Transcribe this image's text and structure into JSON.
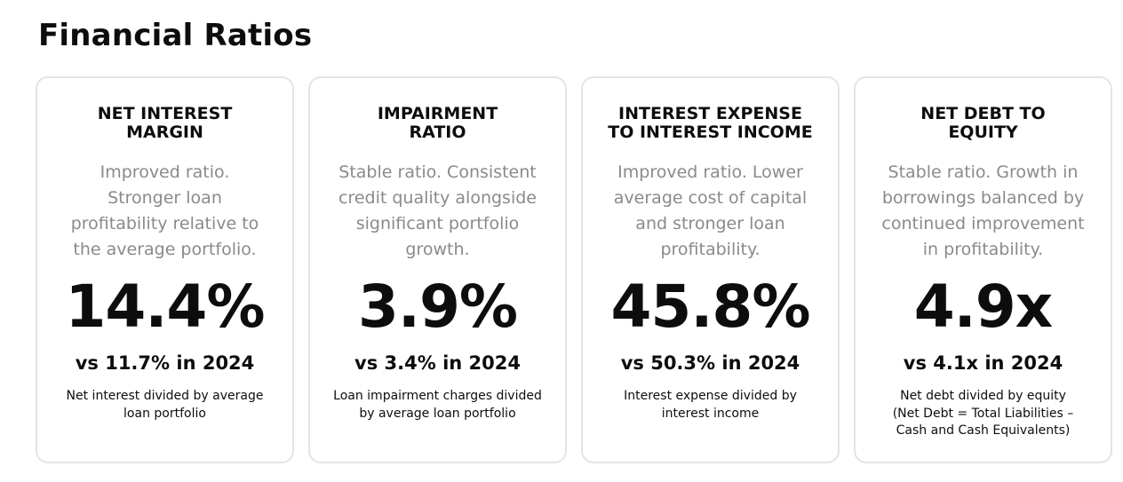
{
  "page": {
    "title": "Financial Ratios"
  },
  "cards": [
    {
      "heading": "NET INTEREST\nMARGIN",
      "description": "Improved ratio.\nStronger loan\nprofitability relative to\nthe average portfolio.",
      "value": "14.4%",
      "comparison": "vs 11.7% in 2024",
      "footnote": "Net interest divided by average\nloan portfolio"
    },
    {
      "heading": "IMPAIRMENT\nRATIO",
      "description": "Stable ratio. Consistent\ncredit quality alongside\nsignificant portfolio\ngrowth.",
      "value": "3.9%",
      "comparison": "vs 3.4% in 2024",
      "footnote": "Loan impairment charges divided\nby average loan portfolio"
    },
    {
      "heading": "INTEREST EXPENSE\nTO INTEREST INCOME",
      "description": "Improved ratio. Lower\naverage cost of capital\nand stronger loan\nprofitability.",
      "value": "45.8%",
      "comparison": "vs 50.3% in 2024",
      "footnote": "Interest expense divided by\ninterest income"
    },
    {
      "heading": "NET DEBT TO\nEQUITY",
      "description": "Stable ratio. Growth in\nborrowings balanced by\ncontinued improvement\nin profitability.",
      "value": "4.9x",
      "comparison": "vs 4.1x in 2024",
      "footnote": "Net debt divided by equity\n(Net Debt = Total Liabilities –\nCash and Cash Equivalents)"
    }
  ]
}
